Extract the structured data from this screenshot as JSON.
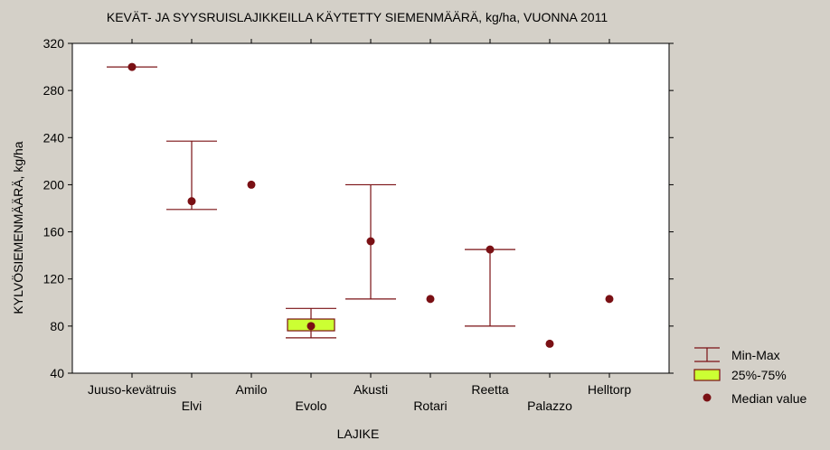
{
  "chart_data": {
    "type": "boxplot",
    "title": "KEVÄT- JA SYYSRUISLAJIKKEILLA KÄYTETTY SIEMENMÄÄRÄ, kg/ha, VUONNA 2011",
    "xlabel": "LAJIKE",
    "ylabel": "KYLVÖSIEMENMÄÄRÄ, kg/ha",
    "ylim": [
      40,
      320
    ],
    "yticks": [
      40,
      80,
      120,
      160,
      200,
      240,
      280,
      320
    ],
    "grid": false,
    "legend_position": "bottom-right",
    "categories": [
      "Juuso-kevätruis",
      "Elvi",
      "Amilo",
      "Evolo",
      "Akusti",
      "Rotari",
      "Reetta",
      "Palazzo",
      "Helltorp"
    ],
    "median": [
      300,
      186,
      200,
      80,
      152,
      103,
      145,
      65,
      103
    ],
    "min": [
      300,
      179,
      null,
      70,
      103,
      null,
      80,
      null,
      null
    ],
    "max": [
      300,
      237,
      null,
      95,
      200,
      null,
      145,
      null,
      null
    ],
    "q1": [
      null,
      null,
      null,
      76,
      null,
      null,
      null,
      null,
      null
    ],
    "q3": [
      null,
      null,
      null,
      86,
      null,
      null,
      null,
      null,
      null
    ],
    "legend": {
      "min_max": "Min-Max",
      "quartiles": "25%-75%",
      "median": "Median value"
    },
    "colors": {
      "whisker": "#7a1014",
      "box_fill": "#ccff33",
      "median": "#7a1014",
      "plot_bg": "#ffffff",
      "page_bg": "#d4d0c8"
    }
  }
}
